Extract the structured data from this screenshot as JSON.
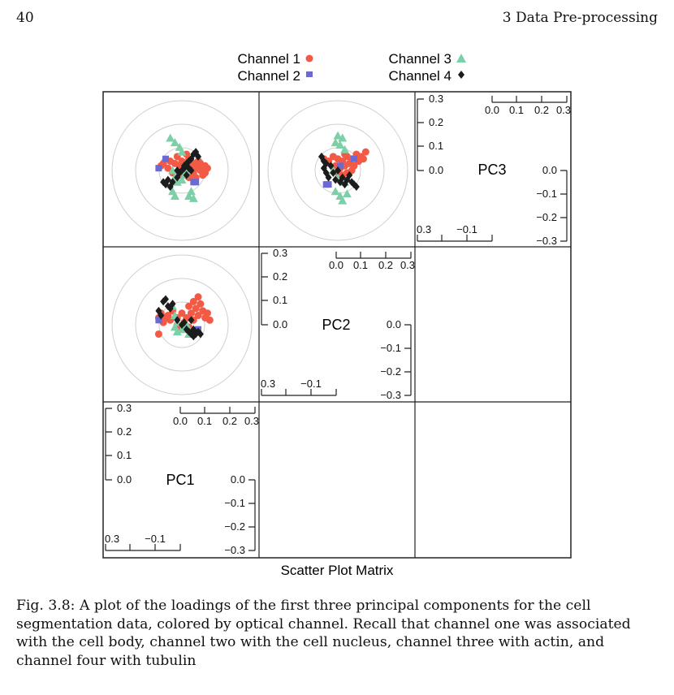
{
  "header": {
    "page_number": "40",
    "running_head": "3 Data Pre-processing"
  },
  "figure": {
    "legend": [
      {
        "label": "Channel 1",
        "symbol": "circle",
        "color": "#f25a45"
      },
      {
        "label": "Channel 2",
        "symbol": "square",
        "color": "#6a6ad0"
      },
      {
        "label": "Channel 3",
        "symbol": "triangle",
        "color": "#7dcfa8"
      },
      {
        "label": "Channel 4",
        "symbol": "diamond",
        "color": "#1c1c1c"
      }
    ],
    "panel_labels": [
      "PC3",
      "PC2",
      "PC1"
    ],
    "tick_labels": {
      "left": [
        "0.3",
        "0.2",
        "0.1",
        "0.0"
      ],
      "top": [
        "0.0",
        "0.1",
        "0.2",
        "0.3"
      ],
      "right": [
        "0.0",
        "−0.1",
        "−0.2",
        "−0.3"
      ],
      "bottom": [
        "0.3",
        "−0.1"
      ]
    },
    "xlabel": "Scatter Plot Matrix"
  },
  "chart_data": [
    {
      "type": "scatter",
      "panel": "PC1 vs PC3 (top-left)",
      "series": [
        {
          "name": "Channel 1",
          "points": [
            [
              -0.09,
              0.02
            ],
            [
              -0.08,
              0.03
            ],
            [
              -0.06,
              0.01
            ],
            [
              -0.05,
              0.04
            ],
            [
              -0.03,
              0.03
            ],
            [
              -0.02,
              0.06
            ],
            [
              -0.01,
              0.02
            ],
            [
              0.0,
              0.04
            ],
            [
              0.01,
              -0.01
            ],
            [
              0.02,
              0.01
            ],
            [
              0.03,
              0.05
            ],
            [
              0.04,
              0.02
            ],
            [
              0.05,
              0.03
            ],
            [
              0.06,
              0.01
            ],
            [
              0.07,
              0.04
            ],
            [
              0.08,
              0.0
            ],
            [
              0.09,
              -0.02
            ],
            [
              0.1,
              0.02
            ],
            [
              0.03,
              -0.03
            ],
            [
              0.0,
              -0.02
            ],
            [
              -0.01,
              0.0
            ],
            [
              0.02,
              0.07
            ],
            [
              0.05,
              -0.01
            ],
            [
              0.08,
              0.03
            ],
            [
              -0.04,
              -0.01
            ],
            [
              0.06,
              -0.03
            ],
            [
              0.1,
              -0.01
            ],
            [
              0.11,
              0.01
            ]
          ]
        },
        {
          "name": "Channel 2",
          "points": [
            [
              -0.1,
              0.01
            ],
            [
              -0.07,
              0.05
            ],
            [
              0.05,
              -0.05
            ],
            [
              0.06,
              -0.05
            ]
          ]
        },
        {
          "name": "Channel 3",
          "points": [
            [
              -0.05,
              0.14
            ],
            [
              -0.03,
              0.12
            ],
            [
              -0.01,
              0.1
            ],
            [
              0.0,
              0.08
            ],
            [
              -0.04,
              0.0
            ],
            [
              -0.03,
              -0.03
            ],
            [
              -0.02,
              -0.05
            ],
            [
              -0.04,
              -0.09
            ],
            [
              -0.03,
              -0.11
            ],
            [
              0.03,
              -0.11
            ],
            [
              0.05,
              -0.12
            ],
            [
              0.04,
              -0.09
            ],
            [
              0.0,
              -0.04
            ],
            [
              0.01,
              -0.02
            ],
            [
              0.02,
              0.0
            ]
          ]
        },
        {
          "name": "Channel 4",
          "points": [
            [
              -0.08,
              -0.05
            ],
            [
              -0.07,
              -0.06
            ],
            [
              -0.06,
              -0.04
            ],
            [
              -0.05,
              -0.07
            ],
            [
              -0.04,
              -0.05
            ],
            [
              -0.02,
              -0.03
            ],
            [
              -0.01,
              -0.01
            ],
            [
              0.0,
              0.0
            ],
            [
              0.01,
              0.02
            ],
            [
              0.02,
              0.03
            ],
            [
              0.03,
              0.04
            ],
            [
              0.04,
              0.05
            ],
            [
              0.05,
              0.07
            ],
            [
              0.06,
              0.08
            ],
            [
              0.07,
              0.06
            ],
            [
              0.02,
              -0.02
            ],
            [
              0.01,
              0.01
            ],
            [
              -0.02,
              0.0
            ],
            [
              0.03,
              0.01
            ],
            [
              0.04,
              0.0
            ]
          ]
        }
      ]
    },
    {
      "type": "scatter",
      "panel": "PC2 vs PC3 (top-middle)",
      "series": [
        {
          "name": "Channel 1",
          "points": [
            [
              -0.06,
              0.05
            ],
            [
              -0.04,
              0.04
            ],
            [
              -0.02,
              0.06
            ],
            [
              0.0,
              0.05
            ],
            [
              0.02,
              0.04
            ],
            [
              0.04,
              0.06
            ],
            [
              0.06,
              0.05
            ],
            [
              0.08,
              0.07
            ],
            [
              0.1,
              0.06
            ],
            [
              0.12,
              0.08
            ],
            [
              0.03,
              0.02
            ],
            [
              0.05,
              0.03
            ],
            [
              0.07,
              0.02
            ],
            [
              0.01,
              0.01
            ],
            [
              -0.01,
              0.02
            ],
            [
              0.04,
              -0.01
            ],
            [
              0.06,
              0.0
            ],
            [
              0.09,
              0.04
            ],
            [
              0.02,
              -0.02
            ],
            [
              0.0,
              -0.01
            ],
            [
              0.11,
              0.05
            ],
            [
              0.03,
              0.07
            ]
          ]
        },
        {
          "name": "Channel 2",
          "points": [
            [
              -0.05,
              -0.06
            ],
            [
              -0.04,
              -0.06
            ],
            [
              0.07,
              0.05
            ],
            [
              0.01,
              0.02
            ]
          ]
        },
        {
          "name": "Channel 3",
          "points": [
            [
              0.0,
              0.15
            ],
            [
              0.02,
              0.14
            ],
            [
              -0.01,
              0.12
            ],
            [
              0.01,
              0.11
            ],
            [
              0.03,
              0.09
            ],
            [
              -0.02,
              0.0
            ],
            [
              0.0,
              -0.03
            ],
            [
              -0.01,
              -0.09
            ],
            [
              0.01,
              -0.11
            ],
            [
              0.02,
              -0.13
            ],
            [
              0.04,
              -0.1
            ],
            [
              0.03,
              -0.05
            ]
          ]
        },
        {
          "name": "Channel 4",
          "points": [
            [
              -0.07,
              0.06
            ],
            [
              -0.06,
              0.04
            ],
            [
              -0.05,
              0.03
            ],
            [
              -0.06,
              0.01
            ],
            [
              -0.05,
              -0.01
            ],
            [
              -0.04,
              -0.03
            ],
            [
              -0.03,
              0.02
            ],
            [
              -0.02,
              -0.01
            ],
            [
              0.0,
              0.0
            ],
            [
              0.02,
              -0.03
            ],
            [
              0.04,
              -0.04
            ],
            [
              0.05,
              -0.02
            ],
            [
              0.06,
              -0.05
            ],
            [
              0.07,
              -0.06
            ],
            [
              0.08,
              -0.07
            ],
            [
              0.03,
              -0.06
            ],
            [
              0.01,
              -0.05
            ],
            [
              -0.01,
              -0.04
            ]
          ]
        }
      ]
    },
    {
      "type": "scatter",
      "panel": "PC1 vs PC2 (middle-left)",
      "series": [
        {
          "name": "Channel 1",
          "points": [
            [
              -0.1,
              0.03
            ],
            [
              -0.09,
              0.05
            ],
            [
              -0.08,
              0.01
            ],
            [
              -0.07,
              0.03
            ],
            [
              -0.06,
              0.04
            ],
            [
              -0.05,
              0.02
            ],
            [
              -0.04,
              0.06
            ],
            [
              -0.02,
              0.03
            ],
            [
              0.0,
              0.05
            ],
            [
              0.01,
              0.01
            ],
            [
              0.02,
              0.03
            ],
            [
              0.03,
              0.08
            ],
            [
              0.04,
              0.05
            ],
            [
              0.05,
              0.1
            ],
            [
              0.06,
              0.07
            ],
            [
              0.07,
              0.12
            ],
            [
              0.08,
              0.09
            ],
            [
              0.09,
              0.06
            ],
            [
              0.1,
              0.03
            ],
            [
              0.11,
              0.05
            ],
            [
              0.03,
              -0.01
            ],
            [
              0.0,
              -0.02
            ],
            [
              -0.02,
              0.0
            ],
            [
              0.05,
              0.02
            ],
            [
              -0.1,
              -0.04
            ],
            [
              0.07,
              0.04
            ],
            [
              0.12,
              0.02
            ]
          ]
        },
        {
          "name": "Channel 2",
          "points": [
            [
              -0.1,
              0.02
            ],
            [
              0.07,
              -0.02
            ]
          ]
        },
        {
          "name": "Channel 3",
          "points": [
            [
              -0.04,
              0.08
            ],
            [
              -0.03,
              0.04
            ],
            [
              -0.02,
              0.01
            ],
            [
              -0.03,
              -0.01
            ],
            [
              -0.02,
              -0.03
            ],
            [
              0.0,
              -0.02
            ],
            [
              0.01,
              -0.01
            ],
            [
              0.02,
              0.0
            ],
            [
              0.04,
              -0.03
            ],
            [
              0.03,
              -0.04
            ]
          ]
        },
        {
          "name": "Channel 4",
          "points": [
            [
              -0.08,
              0.1
            ],
            [
              -0.07,
              0.11
            ],
            [
              -0.06,
              0.08
            ],
            [
              -0.05,
              0.07
            ],
            [
              -0.04,
              0.09
            ],
            [
              -0.1,
              0.06
            ],
            [
              -0.09,
              0.04
            ],
            [
              -0.02,
              0.02
            ],
            [
              0.0,
              0.0
            ],
            [
              0.02,
              -0.02
            ],
            [
              0.03,
              -0.03
            ],
            [
              0.04,
              -0.04
            ],
            [
              0.05,
              -0.05
            ],
            [
              0.06,
              -0.04
            ],
            [
              0.07,
              -0.03
            ],
            [
              0.08,
              -0.04
            ],
            [
              0.05,
              -0.02
            ],
            [
              0.04,
              0.02
            ],
            [
              0.01,
              0.01
            ]
          ]
        }
      ]
    }
  ],
  "caption": "Fig. 3.8: A plot of the loadings of the first three principal components for the cell segmentation data, colored by optical channel. Recall that channel one was associated with the cell body, channel two with the cell nucleus, channel three with actin, and channel four with tubulin"
}
